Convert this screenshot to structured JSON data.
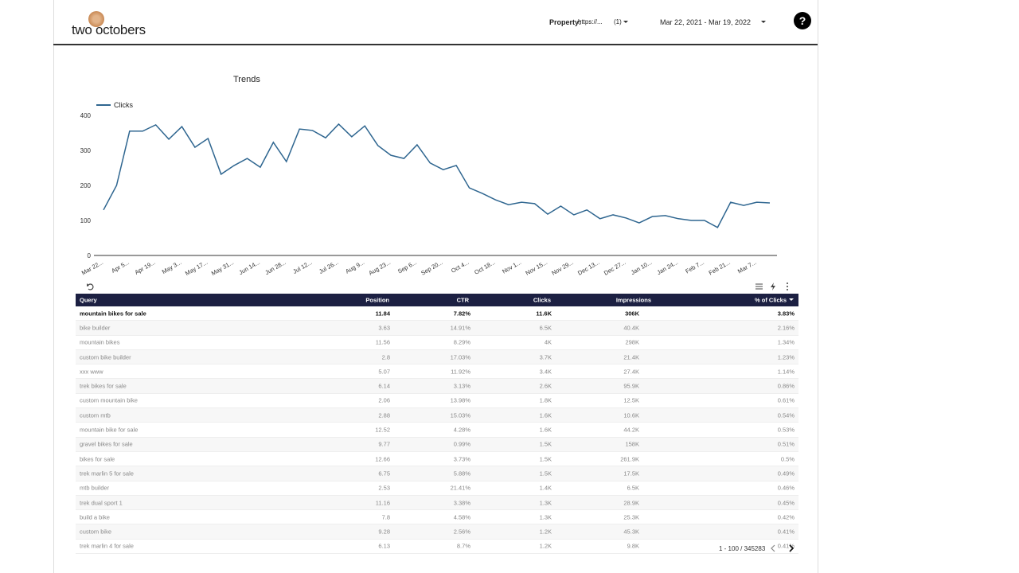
{
  "header": {
    "logo": "two octobers",
    "property_label": "Property:",
    "property_value": "https://...",
    "property_count": "(1)",
    "date_range": "Mar 22, 2021 - Mar 19, 2022",
    "help": "?"
  },
  "chart_data": {
    "type": "line",
    "title": "Trends",
    "categories": [
      "Mar 22...",
      null,
      "Apr 5...",
      null,
      "Apr 19...",
      null,
      "May 3...",
      null,
      "May 17...",
      null,
      "May 31...",
      null,
      "Jun 14...",
      null,
      "Jun 28...",
      null,
      "Jul 12...",
      null,
      "Jul 26...",
      null,
      "Aug 9...",
      null,
      "Aug 23...",
      null,
      "Sep 6...",
      null,
      "Sep 20...",
      null,
      "Oct 4...",
      null,
      "Oct 18...",
      null,
      "Nov 1...",
      null,
      "Nov 15...",
      null,
      "Nov 29...",
      null,
      "Dec 13...",
      null,
      "Dec 27...",
      null,
      "Jan 10...",
      null,
      "Jan 24...",
      null,
      "Feb 7...",
      null,
      "Feb 21...",
      null,
      "Mar 7...",
      null
    ],
    "series": [
      {
        "name": "Clicks",
        "color": "#2f6690",
        "values": [
          130,
          200,
          355,
          355,
          373,
          332,
          368,
          309,
          334,
          232,
          257,
          277,
          252,
          323,
          268,
          361,
          357,
          336,
          375,
          339,
          370,
          314,
          286,
          277,
          316,
          264,
          245,
          257,
          193,
          177,
          159,
          145,
          152,
          148,
          118,
          141,
          116,
          130,
          105,
          116,
          107,
          93,
          111,
          114,
          105,
          100,
          100,
          80,
          152,
          143,
          152,
          150
        ]
      }
    ],
    "ylim": [
      0,
      400
    ],
    "yticks": [
      0,
      100,
      200,
      300,
      400
    ],
    "legend": "top-left"
  },
  "table": {
    "columns": [
      "Query",
      "Position",
      "CTR",
      "Clicks",
      "Impressions",
      "% of Clicks"
    ],
    "rows": [
      [
        "mountain bikes for sale",
        "11.84",
        "7.82%",
        "11.6K",
        "306K",
        "3.83%"
      ],
      [
        "bike builder",
        "3.63",
        "14.91%",
        "6.5K",
        "40.4K",
        "2.16%"
      ],
      [
        "mountain bikes",
        "11.56",
        "8.29%",
        "4K",
        "298K",
        "1.34%"
      ],
      [
        "custom bike builder",
        "2.8",
        "17.03%",
        "3.7K",
        "21.4K",
        "1.23%"
      ],
      [
        "xxx www",
        "5.07",
        "11.92%",
        "3.4K",
        "27.4K",
        "1.14%"
      ],
      [
        "trek bikes for sale",
        "6.14",
        "3.13%",
        "2.6K",
        "95.9K",
        "0.86%"
      ],
      [
        "custom mountain bike",
        "2.06",
        "13.98%",
        "1.8K",
        "12.5K",
        "0.61%"
      ],
      [
        "custom mtb",
        "2.88",
        "15.03%",
        "1.6K",
        "10.6K",
        "0.54%"
      ],
      [
        "mountain bike for sale",
        "12.52",
        "4.28%",
        "1.6K",
        "44.2K",
        "0.53%"
      ],
      [
        "gravel bikes for sale",
        "9.77",
        "0.99%",
        "1.5K",
        "158K",
        "0.51%"
      ],
      [
        "bikes for sale",
        "12.66",
        "3.73%",
        "1.5K",
        "261.9K",
        "0.5%"
      ],
      [
        "trek marlin 5 for sale",
        "6.75",
        "5.88%",
        "1.5K",
        "17.5K",
        "0.49%"
      ],
      [
        "mtb builder",
        "2.53",
        "21.41%",
        "1.4K",
        "6.5K",
        "0.46%"
      ],
      [
        "trek dual sport 1",
        "11.16",
        "3.38%",
        "1.3K",
        "28.9K",
        "0.45%"
      ],
      [
        "build a bike",
        "7.8",
        "4.58%",
        "1.3K",
        "25.3K",
        "0.42%"
      ],
      [
        "custom bike",
        "9.28",
        "2.56%",
        "1.2K",
        "45.3K",
        "0.41%"
      ],
      [
        "trek marlin 4 for sale",
        "6.13",
        "8.7%",
        "1.2K",
        "9.8K",
        "0.41%"
      ]
    ],
    "pagination": "1 - 100 / 345283"
  }
}
